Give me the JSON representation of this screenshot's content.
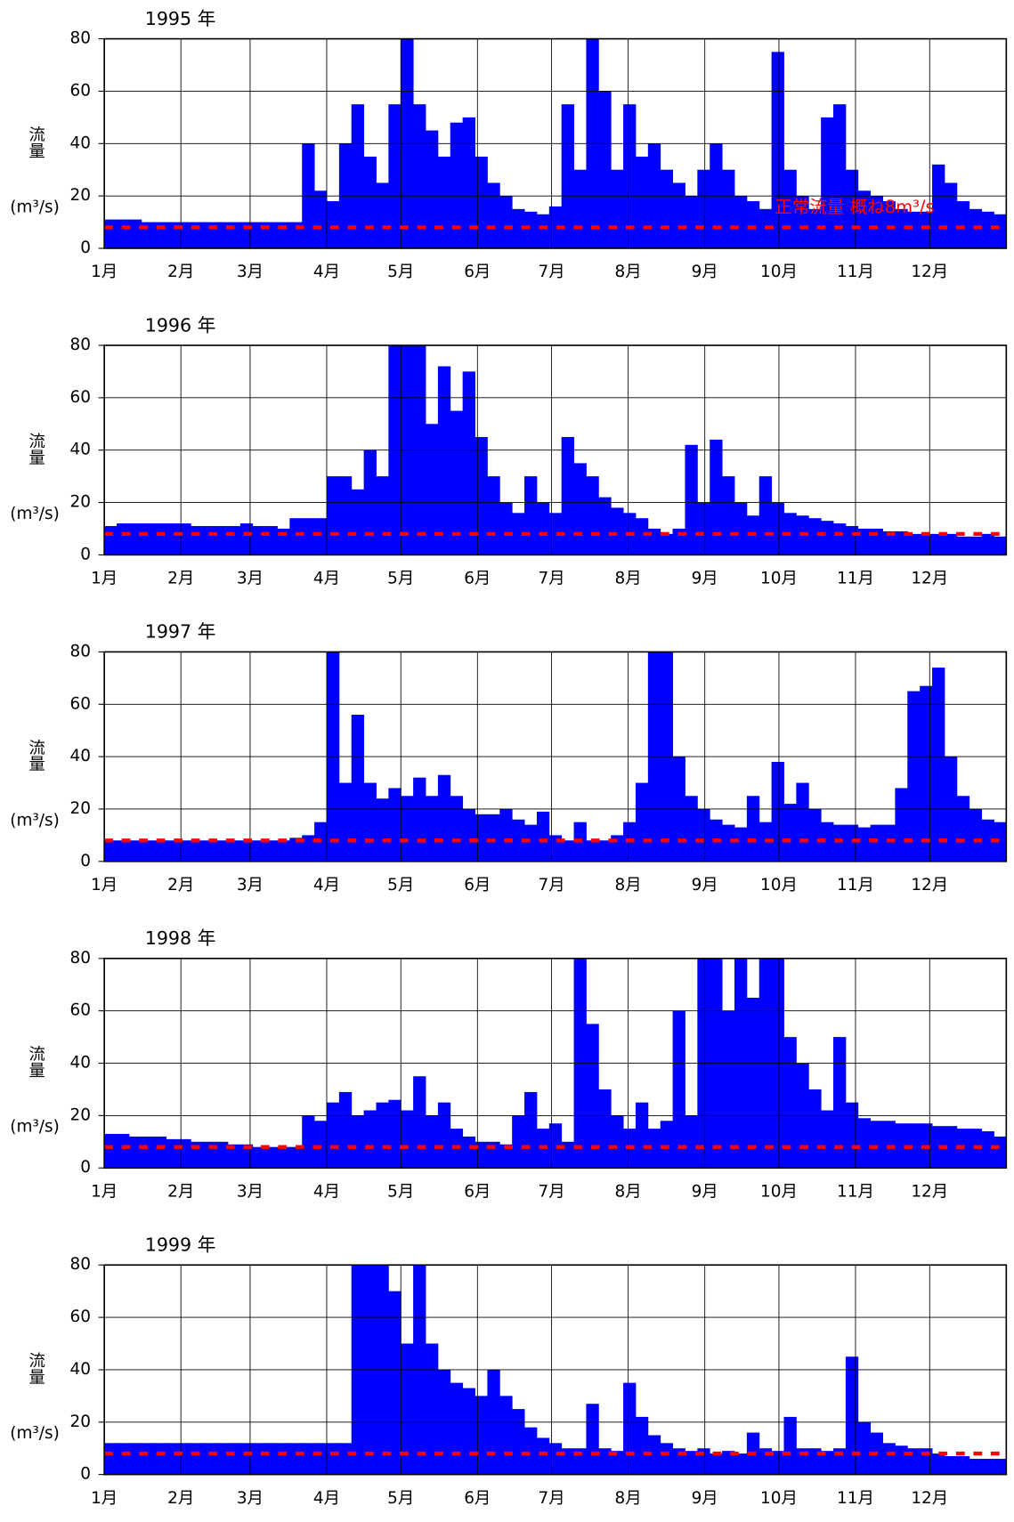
{
  "chart_data": [
    {
      "type": "bar",
      "title": "1995 年",
      "ylabel": "流量",
      "ylabel_unit": "(m³/s)",
      "color": "#0000ff",
      "grid": true,
      "annotation": "正常流量 概ね8m³/s",
      "reference_line": {
        "value": 8,
        "color": "#ff0000"
      },
      "xlim": [
        1,
        366
      ],
      "xticks": [
        {
          "value": 1,
          "label": "1月"
        },
        {
          "value": 32,
          "label": "2月"
        },
        {
          "value": 60,
          "label": "3月"
        },
        {
          "value": 91,
          "label": "4月"
        },
        {
          "value": 121,
          "label": "5月"
        },
        {
          "value": 152,
          "label": "6月"
        },
        {
          "value": 182,
          "label": "7月"
        },
        {
          "value": 213,
          "label": "8月"
        },
        {
          "value": 244,
          "label": "9月"
        },
        {
          "value": 274,
          "label": "10月"
        },
        {
          "value": 305,
          "label": "11月"
        },
        {
          "value": 335,
          "label": "12月"
        }
      ],
      "ylim": [
        0,
        80
      ],
      "yticks": [
        0,
        20,
        40,
        60,
        80
      ],
      "x": [
        1,
        6,
        11,
        16,
        21,
        26,
        31,
        36,
        41,
        46,
        51,
        56,
        61,
        66,
        71,
        76,
        81,
        86,
        91,
        96,
        101,
        106,
        111,
        116,
        121,
        126,
        131,
        136,
        141,
        146,
        151,
        156,
        161,
        166,
        171,
        176,
        181,
        186,
        191,
        196,
        201,
        206,
        211,
        216,
        221,
        226,
        231,
        236,
        241,
        246,
        251,
        256,
        261,
        266,
        271,
        276,
        281,
        286,
        291,
        296,
        301,
        306,
        311,
        316,
        321,
        326,
        331,
        336,
        341,
        346,
        351,
        356,
        361
      ],
      "values": [
        11,
        11,
        11,
        10,
        10,
        10,
        10,
        10,
        10,
        10,
        10,
        10,
        10,
        10,
        10,
        10,
        40,
        22,
        18,
        40,
        55,
        35,
        25,
        55,
        80,
        55,
        45,
        35,
        48,
        50,
        35,
        25,
        20,
        15,
        14,
        13,
        16,
        55,
        30,
        80,
        60,
        30,
        55,
        35,
        40,
        30,
        25,
        20,
        30,
        40,
        30,
        20,
        18,
        15,
        75,
        30,
        20,
        15,
        50,
        55,
        30,
        22,
        20,
        18,
        15,
        14,
        14,
        32,
        25,
        18,
        15,
        14,
        13
      ]
    },
    {
      "type": "bar",
      "title": "1996 年",
      "ylabel": "流量",
      "ylabel_unit": "(m³/s)",
      "color": "#0000ff",
      "grid": true,
      "reference_line": {
        "value": 8,
        "color": "#ff0000"
      },
      "xlim": [
        1,
        366
      ],
      "xticks": [
        {
          "value": 1,
          "label": "1月"
        },
        {
          "value": 32,
          "label": "2月"
        },
        {
          "value": 60,
          "label": "3月"
        },
        {
          "value": 91,
          "label": "4月"
        },
        {
          "value": 121,
          "label": "5月"
        },
        {
          "value": 152,
          "label": "6月"
        },
        {
          "value": 182,
          "label": "7月"
        },
        {
          "value": 213,
          "label": "8月"
        },
        {
          "value": 244,
          "label": "9月"
        },
        {
          "value": 274,
          "label": "10月"
        },
        {
          "value": 305,
          "label": "11月"
        },
        {
          "value": 335,
          "label": "12月"
        }
      ],
      "ylim": [
        0,
        80
      ],
      "yticks": [
        0,
        20,
        40,
        60,
        80
      ],
      "x": [
        1,
        6,
        11,
        16,
        21,
        26,
        31,
        36,
        41,
        46,
        51,
        56,
        61,
        66,
        71,
        76,
        81,
        86,
        91,
        96,
        101,
        106,
        111,
        116,
        121,
        126,
        131,
        136,
        141,
        146,
        151,
        156,
        161,
        166,
        171,
        176,
        181,
        186,
        191,
        196,
        201,
        206,
        211,
        216,
        221,
        226,
        231,
        236,
        241,
        246,
        251,
        256,
        261,
        266,
        271,
        276,
        281,
        286,
        291,
        296,
        301,
        306,
        311,
        316,
        321,
        326,
        331,
        336,
        341,
        346,
        351,
        356,
        361
      ],
      "values": [
        11,
        12,
        12,
        12,
        12,
        12,
        12,
        11,
        11,
        11,
        11,
        12,
        11,
        11,
        10,
        14,
        14,
        14,
        30,
        30,
        25,
        40,
        30,
        80,
        80,
        80,
        50,
        72,
        55,
        70,
        45,
        30,
        20,
        16,
        30,
        20,
        16,
        45,
        35,
        30,
        22,
        18,
        16,
        14,
        10,
        8,
        10,
        42,
        20,
        44,
        30,
        20,
        15,
        30,
        20,
        16,
        15,
        14,
        13,
        12,
        11,
        10,
        10,
        9,
        9,
        8,
        8,
        8,
        8,
        7,
        7,
        8,
        7
      ]
    },
    {
      "type": "bar",
      "title": "1997 年",
      "ylabel": "流量",
      "ylabel_unit": "(m³/s)",
      "color": "#0000ff",
      "grid": true,
      "reference_line": {
        "value": 8,
        "color": "#ff0000"
      },
      "xlim": [
        1,
        366
      ],
      "xticks": [
        {
          "value": 1,
          "label": "1月"
        },
        {
          "value": 32,
          "label": "2月"
        },
        {
          "value": 60,
          "label": "3月"
        },
        {
          "value": 91,
          "label": "4月"
        },
        {
          "value": 121,
          "label": "5月"
        },
        {
          "value": 152,
          "label": "6月"
        },
        {
          "value": 182,
          "label": "7月"
        },
        {
          "value": 213,
          "label": "8月"
        },
        {
          "value": 244,
          "label": "9月"
        },
        {
          "value": 274,
          "label": "10月"
        },
        {
          "value": 305,
          "label": "11月"
        },
        {
          "value": 335,
          "label": "12月"
        }
      ],
      "ylim": [
        0,
        80
      ],
      "yticks": [
        0,
        20,
        40,
        60,
        80
      ],
      "x": [
        1,
        6,
        11,
        16,
        21,
        26,
        31,
        36,
        41,
        46,
        51,
        56,
        61,
        66,
        71,
        76,
        81,
        86,
        91,
        96,
        101,
        106,
        111,
        116,
        121,
        126,
        131,
        136,
        141,
        146,
        151,
        156,
        161,
        166,
        171,
        176,
        181,
        186,
        191,
        196,
        201,
        206,
        211,
        216,
        221,
        226,
        231,
        236,
        241,
        246,
        251,
        256,
        261,
        266,
        271,
        276,
        281,
        286,
        291,
        296,
        301,
        306,
        311,
        316,
        321,
        326,
        331,
        336,
        341,
        346,
        351,
        356,
        361
      ],
      "values": [
        8,
        8,
        8,
        8,
        8,
        8,
        8,
        8,
        8,
        8,
        8,
        8,
        8,
        8,
        8,
        9,
        10,
        15,
        80,
        30,
        56,
        30,
        24,
        28,
        25,
        32,
        25,
        33,
        25,
        20,
        18,
        18,
        20,
        16,
        14,
        19,
        10,
        8,
        15,
        8,
        8,
        10,
        15,
        30,
        80,
        80,
        40,
        25,
        20,
        16,
        14,
        13,
        25,
        15,
        38,
        22,
        30,
        20,
        15,
        14,
        14,
        13,
        14,
        14,
        28,
        65,
        67,
        74,
        40,
        25,
        20,
        16,
        15
      ]
    },
    {
      "type": "bar",
      "title": "1998 年",
      "ylabel": "流量",
      "ylabel_unit": "(m³/s)",
      "color": "#0000ff",
      "grid": true,
      "reference_line": {
        "value": 8,
        "color": "#ff0000"
      },
      "xlim": [
        1,
        366
      ],
      "xticks": [
        {
          "value": 1,
          "label": "1月"
        },
        {
          "value": 32,
          "label": "2月"
        },
        {
          "value": 60,
          "label": "3月"
        },
        {
          "value": 91,
          "label": "4月"
        },
        {
          "value": 121,
          "label": "5月"
        },
        {
          "value": 152,
          "label": "6月"
        },
        {
          "value": 182,
          "label": "7月"
        },
        {
          "value": 213,
          "label": "8月"
        },
        {
          "value": 244,
          "label": "9月"
        },
        {
          "value": 274,
          "label": "10月"
        },
        {
          "value": 305,
          "label": "11月"
        },
        {
          "value": 335,
          "label": "12月"
        }
      ],
      "ylim": [
        0,
        80
      ],
      "yticks": [
        0,
        20,
        40,
        60,
        80
      ],
      "x": [
        1,
        6,
        11,
        16,
        21,
        26,
        31,
        36,
        41,
        46,
        51,
        56,
        61,
        66,
        71,
        76,
        81,
        86,
        91,
        96,
        101,
        106,
        111,
        116,
        121,
        126,
        131,
        136,
        141,
        146,
        151,
        156,
        161,
        166,
        171,
        176,
        181,
        186,
        191,
        196,
        201,
        206,
        211,
        216,
        221,
        226,
        231,
        236,
        241,
        246,
        251,
        256,
        261,
        266,
        271,
        276,
        281,
        286,
        291,
        296,
        301,
        306,
        311,
        316,
        321,
        326,
        331,
        336,
        341,
        346,
        351,
        356,
        361
      ],
      "values": [
        13,
        13,
        12,
        12,
        12,
        11,
        11,
        10,
        10,
        10,
        9,
        9,
        8,
        8,
        8,
        8,
        20,
        18,
        25,
        29,
        20,
        22,
        25,
        26,
        22,
        35,
        20,
        25,
        15,
        12,
        10,
        10,
        9,
        20,
        29,
        15,
        17,
        10,
        80,
        55,
        30,
        20,
        15,
        25,
        15,
        18,
        60,
        20,
        80,
        80,
        60,
        80,
        65,
        80,
        80,
        50,
        40,
        30,
        22,
        50,
        25,
        19,
        18,
        18,
        17,
        17,
        17,
        16,
        16,
        15,
        15,
        14,
        12
      ]
    },
    {
      "type": "bar",
      "title": "1999 年",
      "ylabel": "流量",
      "ylabel_unit": "(m³/s)",
      "color": "#0000ff",
      "grid": true,
      "reference_line": {
        "value": 8,
        "color": "#ff0000"
      },
      "xlim": [
        1,
        366
      ],
      "xticks": [
        {
          "value": 1,
          "label": "1月"
        },
        {
          "value": 32,
          "label": "2月"
        },
        {
          "value": 60,
          "label": "3月"
        },
        {
          "value": 91,
          "label": "4月"
        },
        {
          "value": 121,
          "label": "5月"
        },
        {
          "value": 152,
          "label": "6月"
        },
        {
          "value": 182,
          "label": "7月"
        },
        {
          "value": 213,
          "label": "8月"
        },
        {
          "value": 244,
          "label": "9月"
        },
        {
          "value": 274,
          "label": "10月"
        },
        {
          "value": 305,
          "label": "11月"
        },
        {
          "value": 335,
          "label": "12月"
        }
      ],
      "ylim": [
        0,
        80
      ],
      "yticks": [
        0,
        20,
        40,
        60,
        80
      ],
      "x": [
        1,
        6,
        11,
        16,
        21,
        26,
        31,
        36,
        41,
        46,
        51,
        56,
        61,
        66,
        71,
        76,
        81,
        86,
        91,
        96,
        101,
        106,
        111,
        116,
        121,
        126,
        131,
        136,
        141,
        146,
        151,
        156,
        161,
        166,
        171,
        176,
        181,
        186,
        191,
        196,
        201,
        206,
        211,
        216,
        221,
        226,
        231,
        236,
        241,
        246,
        251,
        256,
        261,
        266,
        271,
        276,
        281,
        286,
        291,
        296,
        301,
        306,
        311,
        316,
        321,
        326,
        331,
        336,
        341,
        346,
        351,
        356,
        361
      ],
      "values": [
        12,
        12,
        12,
        12,
        12,
        12,
        12,
        12,
        12,
        12,
        12,
        12,
        12,
        12,
        12,
        12,
        12,
        12,
        12,
        12,
        80,
        80,
        80,
        70,
        50,
        80,
        50,
        40,
        35,
        33,
        30,
        40,
        30,
        25,
        18,
        14,
        12,
        10,
        10,
        27,
        10,
        9,
        35,
        22,
        15,
        12,
        10,
        9,
        10,
        8,
        9,
        8,
        16,
        10,
        9,
        22,
        10,
        10,
        9,
        10,
        45,
        20,
        16,
        12,
        11,
        10,
        10,
        8,
        7,
        7,
        6,
        6,
        6
      ]
    }
  ]
}
